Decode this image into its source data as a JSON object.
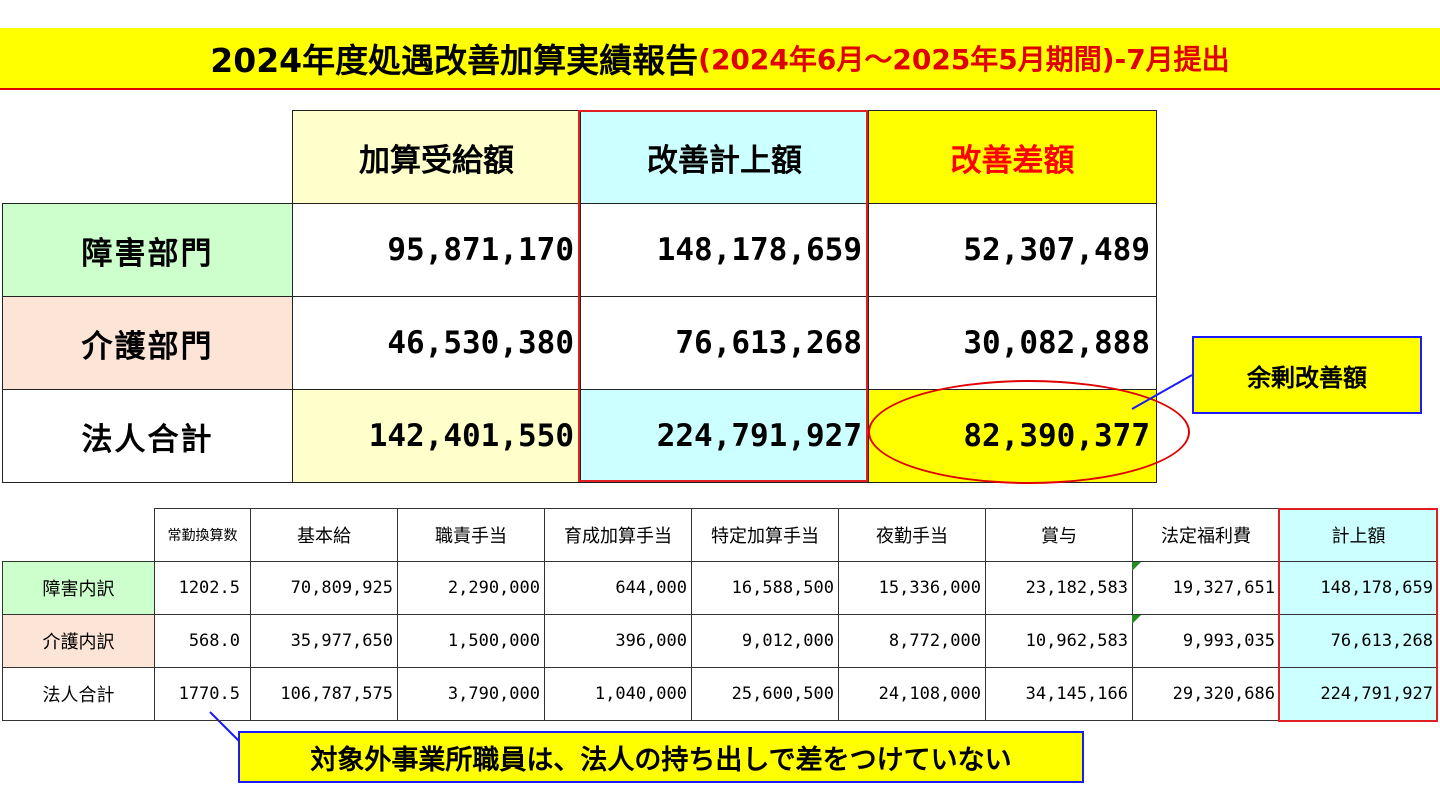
{
  "title": {
    "main": "2024年度処遇改善加算実績報告",
    "sub": "(2024年6月～2025年5月期間)-7月提出"
  },
  "summary": {
    "headers": [
      "加算受給額",
      "改善計上額",
      "改善差額"
    ],
    "rows": [
      {
        "label": "障害部門",
        "values": [
          "95,871,170",
          "148,178,659",
          "52,307,489"
        ]
      },
      {
        "label": "介護部門",
        "values": [
          "46,530,380",
          "76,613,268",
          "30,082,888"
        ]
      },
      {
        "label": "法人合計",
        "values": [
          "142,401,550",
          "224,791,927",
          "82,390,377"
        ]
      }
    ]
  },
  "callouts": {
    "surplus": "余剰改善額",
    "note": "対象外事業所職員は、法人の持ち出しで差をつけていない"
  },
  "detail": {
    "headers": [
      "常勤換算数",
      "基本給",
      "職責手当",
      "育成加算手当",
      "特定加算手当",
      "夜勤手当",
      "賞与",
      "法定福利費",
      "計上額"
    ],
    "rows": [
      {
        "label": "障害内訳",
        "values": [
          "1202.5",
          "70,809,925",
          "2,290,000",
          "644,000",
          "16,588,500",
          "15,336,000",
          "23,182,583",
          "19,327,651",
          "148,178,659"
        ]
      },
      {
        "label": "介護内訳",
        "values": [
          "568.0",
          "35,977,650",
          "1,500,000",
          "396,000",
          "9,012,000",
          "8,772,000",
          "10,962,583",
          "9,993,035",
          "76,613,268"
        ]
      },
      {
        "label": "法人合計",
        "values": [
          "1770.5",
          "106,787,575",
          "3,790,000",
          "1,040,000",
          "25,600,500",
          "24,108,000",
          "34,145,166",
          "29,320,686",
          "224,791,927"
        ]
      }
    ]
  },
  "colors": {
    "title_bg": "#ffff00",
    "accent_red": "#ff0000",
    "callout_border": "#1a1aff",
    "light_yellow": "#ffffcc",
    "light_cyan": "#ccffff",
    "light_green": "#ccffcc",
    "light_peach": "#fce4d6"
  }
}
